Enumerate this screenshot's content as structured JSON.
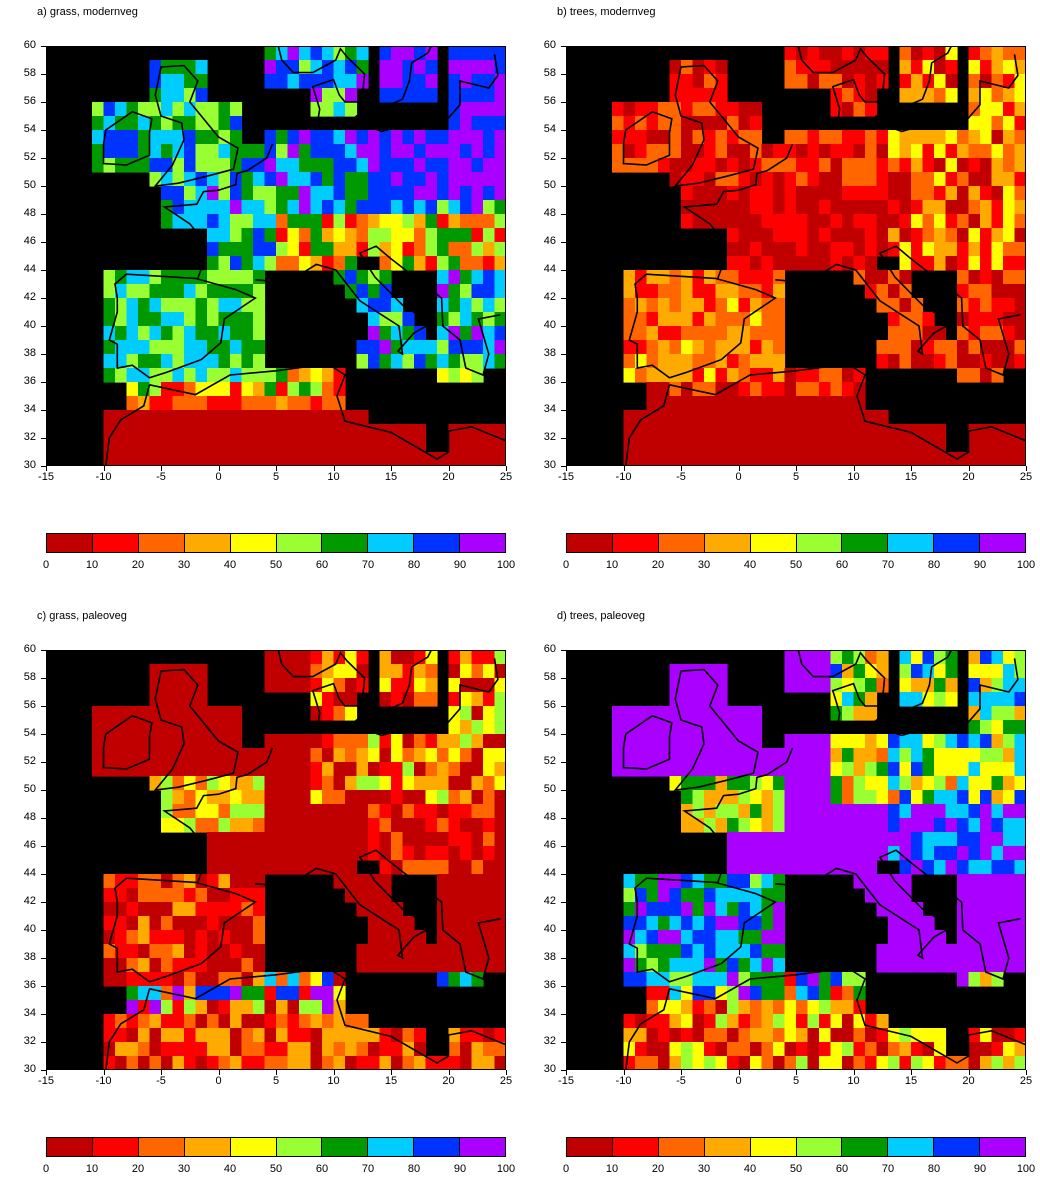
{
  "panels": [
    {
      "id": "a",
      "title": "a) grass, modernveg"
    },
    {
      "id": "b",
      "title": "b) trees, modernveg"
    },
    {
      "id": "c",
      "title": "c) grass, paleoveg"
    },
    {
      "id": "d",
      "title": "d) trees, paleoveg"
    }
  ],
  "axes": {
    "x_ticks": [
      "-15",
      "-10",
      "-5",
      "0",
      "5",
      "10",
      "15",
      "20",
      "25"
    ],
    "y_ticks": [
      "60",
      "58",
      "56",
      "54",
      "52",
      "50",
      "48",
      "46",
      "44",
      "42",
      "40",
      "38",
      "36",
      "34",
      "32",
      "30"
    ],
    "x_range": [
      -15,
      25
    ],
    "y_range": [
      30,
      60
    ]
  },
  "colorbar": {
    "labels": [
      "0",
      "10",
      "20",
      "30",
      "40",
      "50",
      "60",
      "70",
      "80",
      "90",
      "100"
    ],
    "colors": [
      "#c00000",
      "#ff0000",
      "#ff6600",
      "#ffaa00",
      "#ffff00",
      "#99ff33",
      "#009900",
      "#00ccff",
      "#0033ff",
      "#aa00ff"
    ]
  },
  "no_data_color": "#000000"
}
